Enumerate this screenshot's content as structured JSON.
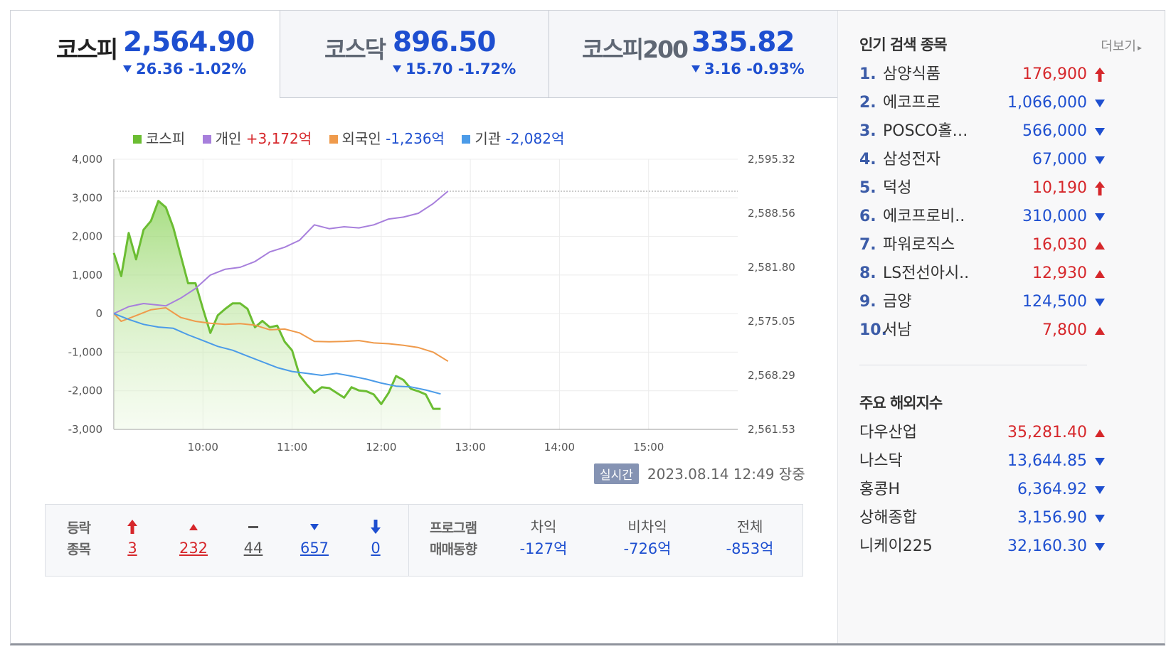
{
  "tabs": [
    {
      "name": "코스피",
      "price": "2,564.90",
      "change": "26.36 -1.02%"
    },
    {
      "name": "코스닥",
      "price": "896.50",
      "change": "15.70 -1.72%"
    },
    {
      "name": "코스피200",
      "price": "335.82",
      "change": "3.16 -0.93%"
    }
  ],
  "legend": {
    "kospi": "코스피",
    "individual": "개인",
    "individual_val": "+3,172억",
    "foreign": "외국인",
    "foreign_val": "-1,236억",
    "institution": "기관",
    "institution_val": "-2,082억"
  },
  "colors": {
    "kospi": "#6bbd32",
    "individual": "#a77fdc",
    "foreign": "#ef9a4b",
    "institution": "#4b9be8",
    "up": "#d6272b",
    "down": "#1e4fd0"
  },
  "chart_data": {
    "type": "line",
    "x_ticks": [
      "10:00",
      "11:00",
      "12:00",
      "13:00",
      "14:00",
      "15:00"
    ],
    "x_range": [
      "09:00",
      "16:00"
    ],
    "y_left_ticks": [
      "4,000",
      "3,000",
      "2,000",
      "1,000",
      "0",
      "-1,000",
      "-2,000",
      "-3,000"
    ],
    "y_left_range": [
      -3000,
      4000
    ],
    "y_right_ticks": [
      "2,595.32",
      "2,588.56",
      "2,581.80",
      "2,575.05",
      "2,568.29",
      "2,561.53"
    ],
    "y_right_range": [
      2561.53,
      2595.32
    ],
    "reference_line": 3172,
    "series": [
      {
        "name": "코스피",
        "axis": "right",
        "area": true,
        "points": [
          [
            "09:00",
            2583.6
          ],
          [
            "09:05",
            2580.7
          ],
          [
            "09:10",
            2586.1
          ],
          [
            "09:15",
            2582.8
          ],
          [
            "09:20",
            2586.5
          ],
          [
            "09:25",
            2587.6
          ],
          [
            "09:30",
            2590.1
          ],
          [
            "09:35",
            2589.3
          ],
          [
            "09:40",
            2586.8
          ],
          [
            "09:45",
            2583.3
          ],
          [
            "09:50",
            2579.8
          ],
          [
            "09:55",
            2579.8
          ],
          [
            "10:00",
            2576.6
          ],
          [
            "10:05",
            2573.6
          ],
          [
            "10:10",
            2575.8
          ],
          [
            "10:15",
            2576.6
          ],
          [
            "10:20",
            2577.3
          ],
          [
            "10:25",
            2577.3
          ],
          [
            "10:30",
            2576.6
          ],
          [
            "10:35",
            2574.3
          ],
          [
            "10:40",
            2575.1
          ],
          [
            "10:45",
            2574.3
          ],
          [
            "10:50",
            2574.5
          ],
          [
            "10:55",
            2572.5
          ],
          [
            "11:00",
            2571.4
          ],
          [
            "11:05",
            2568.3
          ],
          [
            "11:10",
            2567.1
          ],
          [
            "11:15",
            2566.1
          ],
          [
            "11:20",
            2566.8
          ],
          [
            "11:25",
            2566.7
          ],
          [
            "11:30",
            2566.1
          ],
          [
            "11:35",
            2565.5
          ],
          [
            "11:40",
            2566.8
          ],
          [
            "11:45",
            2566.4
          ],
          [
            "11:50",
            2566.3
          ],
          [
            "11:55",
            2565.9
          ],
          [
            "12:00",
            2564.7
          ],
          [
            "12:05",
            2566.1
          ],
          [
            "12:10",
            2568.2
          ],
          [
            "12:15",
            2567.7
          ],
          [
            "12:20",
            2566.6
          ],
          [
            "12:25",
            2566.3
          ],
          [
            "12:30",
            2565.9
          ],
          [
            "12:35",
            2564.1
          ],
          [
            "12:40",
            2564.1
          ]
        ]
      },
      {
        "name": "개인",
        "axis": "left",
        "label": "+3,172억",
        "points": [
          [
            "09:00",
            0
          ],
          [
            "09:10",
            180
          ],
          [
            "09:20",
            260
          ],
          [
            "09:35",
            200
          ],
          [
            "09:45",
            400
          ],
          [
            "09:55",
            650
          ],
          [
            "10:05",
            1000
          ],
          [
            "10:15",
            1150
          ],
          [
            "10:25",
            1200
          ],
          [
            "10:35",
            1350
          ],
          [
            "10:45",
            1600
          ],
          [
            "10:55",
            1720
          ],
          [
            "11:05",
            1900
          ],
          [
            "11:15",
            2300
          ],
          [
            "11:25",
            2200
          ],
          [
            "11:35",
            2250
          ],
          [
            "11:45",
            2220
          ],
          [
            "11:55",
            2300
          ],
          [
            "12:05",
            2450
          ],
          [
            "12:15",
            2500
          ],
          [
            "12:25",
            2600
          ],
          [
            "12:35",
            2850
          ],
          [
            "12:45",
            3172
          ]
        ]
      },
      {
        "name": "외국인",
        "axis": "left",
        "label": "-1,236억",
        "points": [
          [
            "09:00",
            0
          ],
          [
            "09:05",
            -200
          ],
          [
            "09:15",
            -50
          ],
          [
            "09:25",
            100
          ],
          [
            "09:35",
            150
          ],
          [
            "09:45",
            -100
          ],
          [
            "09:55",
            -200
          ],
          [
            "10:05",
            -250
          ],
          [
            "10:15",
            -280
          ],
          [
            "10:25",
            -260
          ],
          [
            "10:35",
            -300
          ],
          [
            "10:45",
            -420
          ],
          [
            "10:55",
            -400
          ],
          [
            "11:05",
            -500
          ],
          [
            "11:15",
            -720
          ],
          [
            "11:25",
            -730
          ],
          [
            "11:35",
            -720
          ],
          [
            "11:45",
            -700
          ],
          [
            "11:55",
            -760
          ],
          [
            "12:05",
            -780
          ],
          [
            "12:15",
            -820
          ],
          [
            "12:25",
            -880
          ],
          [
            "12:35",
            -1000
          ],
          [
            "12:45",
            -1236
          ]
        ]
      },
      {
        "name": "기관",
        "axis": "left",
        "label": "-2,082억",
        "points": [
          [
            "09:00",
            0
          ],
          [
            "09:10",
            -150
          ],
          [
            "09:20",
            -280
          ],
          [
            "09:30",
            -350
          ],
          [
            "09:40",
            -380
          ],
          [
            "09:50",
            -550
          ],
          [
            "10:00",
            -700
          ],
          [
            "10:10",
            -850
          ],
          [
            "10:20",
            -950
          ],
          [
            "10:30",
            -1100
          ],
          [
            "10:40",
            -1250
          ],
          [
            "10:50",
            -1400
          ],
          [
            "11:00",
            -1500
          ],
          [
            "11:10",
            -1550
          ],
          [
            "11:20",
            -1600
          ],
          [
            "11:30",
            -1550
          ],
          [
            "11:40",
            -1620
          ],
          [
            "11:50",
            -1700
          ],
          [
            "12:00",
            -1800
          ],
          [
            "12:10",
            -1880
          ],
          [
            "12:20",
            -1900
          ],
          [
            "12:30",
            -1980
          ],
          [
            "12:40",
            -2082
          ]
        ]
      }
    ]
  },
  "timestamp": {
    "badge": "실시간",
    "text": "2023.08.14 12:49",
    "status": "장중"
  },
  "breadth": {
    "label_line1": "등락",
    "label_line2": "종목",
    "upper_limit": "3",
    "up": "232",
    "flat": "44",
    "down": "657",
    "lower_limit": "0"
  },
  "program": {
    "label_line1": "프로그램",
    "label_line2": "매매동향",
    "arb_label": "차익",
    "arb_val": "-127억",
    "nonarb_label": "비차익",
    "nonarb_val": "-726억",
    "total_label": "전체",
    "total_val": "-853억"
  },
  "popular": {
    "title": "인기 검색 종목",
    "more": "더보기",
    "items": [
      {
        "rank": "1.",
        "name": "삼양식품",
        "price": "176,900",
        "dir": "upper"
      },
      {
        "rank": "2.",
        "name": "에코프로",
        "price": "1,066,000",
        "dir": "down"
      },
      {
        "rank": "3.",
        "name": "POSCO홀…",
        "price": "566,000",
        "dir": "down"
      },
      {
        "rank": "4.",
        "name": "삼성전자",
        "price": "67,000",
        "dir": "down"
      },
      {
        "rank": "5.",
        "name": "덕성",
        "price": "10,190",
        "dir": "upper"
      },
      {
        "rank": "6.",
        "name": "에코프로비..",
        "price": "310,000",
        "dir": "down"
      },
      {
        "rank": "7.",
        "name": "파워로직스",
        "price": "16,030",
        "dir": "up"
      },
      {
        "rank": "8.",
        "name": "LS전선아시..",
        "price": "12,930",
        "dir": "up"
      },
      {
        "rank": "9.",
        "name": "금양",
        "price": "124,500",
        "dir": "down"
      },
      {
        "rank": "10.",
        "name": "서남",
        "price": "7,800",
        "dir": "up"
      }
    ]
  },
  "world": {
    "title": "주요 해외지수",
    "items": [
      {
        "name": "다우산업",
        "price": "35,281.40",
        "dir": "up"
      },
      {
        "name": "나스닥",
        "price": "13,644.85",
        "dir": "down"
      },
      {
        "name": "홍콩H",
        "price": "6,364.92",
        "dir": "down"
      },
      {
        "name": "상해종합",
        "price": "3,156.90",
        "dir": "down"
      },
      {
        "name": "니케이225",
        "price": "32,160.30",
        "dir": "down"
      }
    ]
  }
}
